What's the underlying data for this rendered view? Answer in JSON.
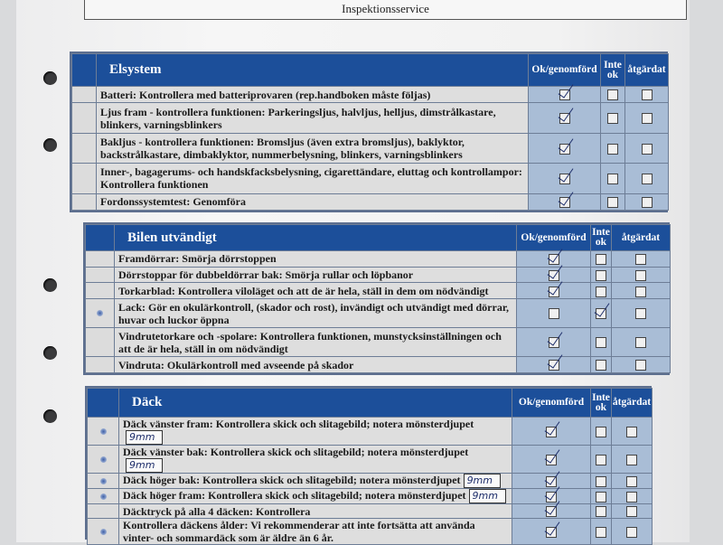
{
  "header_title": "Inspektionsservice",
  "columns": {
    "ok": "Ok/genomförd",
    "not_ok": "Inte ok",
    "fixed": "åtgärdat"
  },
  "sections": [
    {
      "title": "Elsystem",
      "rows": [
        {
          "text": "Batteri: Kontrollera med batteriprovaren (rep.handboken måste följas)",
          "ok": true,
          "not_ok": false,
          "fixed": false,
          "dot": false
        },
        {
          "text": "Ljus fram - kontrollera funktionen: Parkeringsljus, halvljus, helljus, dimstrålkastare, blinkers, varningsblinkers",
          "ok": true,
          "not_ok": false,
          "fixed": false,
          "dot": false
        },
        {
          "text": "Bakljus - kontrollera funktionen: Bromsljus (även extra bromsljus), baklyktor, backstrålkastare, dimbaklyktor, nummerbelysning, blinkers, varningsblinkers",
          "ok": true,
          "not_ok": false,
          "fixed": false,
          "dot": false
        },
        {
          "text": "Inner-, bagagerums- och handskfacksbelysning, cigarettändare, eluttag och kontrollampor: Kontrollera funktionen",
          "ok": true,
          "not_ok": false,
          "fixed": false,
          "dot": false
        },
        {
          "text": "Fordonssystemtest: Genomföra",
          "ok": true,
          "not_ok": false,
          "fixed": false,
          "dot": false
        }
      ]
    },
    {
      "title": "Bilen utvändigt",
      "rows": [
        {
          "text": "Framdörrar: Smörja dörrstoppen",
          "ok": true,
          "not_ok": false,
          "fixed": false,
          "dot": false
        },
        {
          "text": "Dörrstoppar för dubbeldörrar bak: Smörja rullar och löpbanor",
          "ok": true,
          "not_ok": false,
          "fixed": false,
          "dot": false
        },
        {
          "text": "Torkarblad: Kontrollera viloläget och att de är hela, ställ in dem om nödvändigt",
          "ok": true,
          "not_ok": false,
          "fixed": false,
          "dot": false
        },
        {
          "text": "Lack: Gör en okulärkontroll, (skador och rost), invändigt och utvändigt med dörrar, huvar och luckor öppna",
          "ok": false,
          "not_ok": true,
          "fixed": false,
          "dot": true
        },
        {
          "text": "Vindrutetorkare och -spolare: Kontrollera funktionen, munstycksinställningen och att de är hela, ställ in om nödvändigt",
          "ok": true,
          "not_ok": false,
          "fixed": false,
          "dot": false
        },
        {
          "text": "Vindruta: Okulärkontroll med avseende på skador",
          "ok": true,
          "not_ok": false,
          "fixed": false,
          "dot": false
        }
      ]
    },
    {
      "title": "Däck",
      "rows": [
        {
          "text": "Däck vänster fram: Kontrollera skick och slitagebild; notera mönsterdjupet",
          "depth": "9mm",
          "ok": true,
          "not_ok": false,
          "fixed": false,
          "dot": true
        },
        {
          "text": "Däck vänster bak: Kontrollera skick och slitagebild; notera mönsterdjupet",
          "depth": "9mm",
          "ok": true,
          "not_ok": false,
          "fixed": false,
          "dot": true
        },
        {
          "text": "Däck höger bak: Kontrollera skick och slitagebild; notera mönsterdjupet",
          "depth": "9mm",
          "ok": true,
          "not_ok": false,
          "fixed": false,
          "dot": true
        },
        {
          "text": "Däck höger fram: Kontrollera skick och slitagebild; notera mönsterdjupet",
          "depth": "9mm",
          "ok": true,
          "not_ok": false,
          "fixed": false,
          "dot": true
        },
        {
          "text": "Däcktryck på alla 4 däcken: Kontrollera",
          "ok": true,
          "not_ok": false,
          "fixed": false,
          "dot": false
        },
        {
          "text": "Kontrollera däckens ålder: Vi rekommenderar att inte fortsätta att använda vinter- och sommardäck som är äldre än 6 år.",
          "ok": true,
          "not_ok": false,
          "fixed": false,
          "dot": true
        }
      ]
    }
  ]
}
